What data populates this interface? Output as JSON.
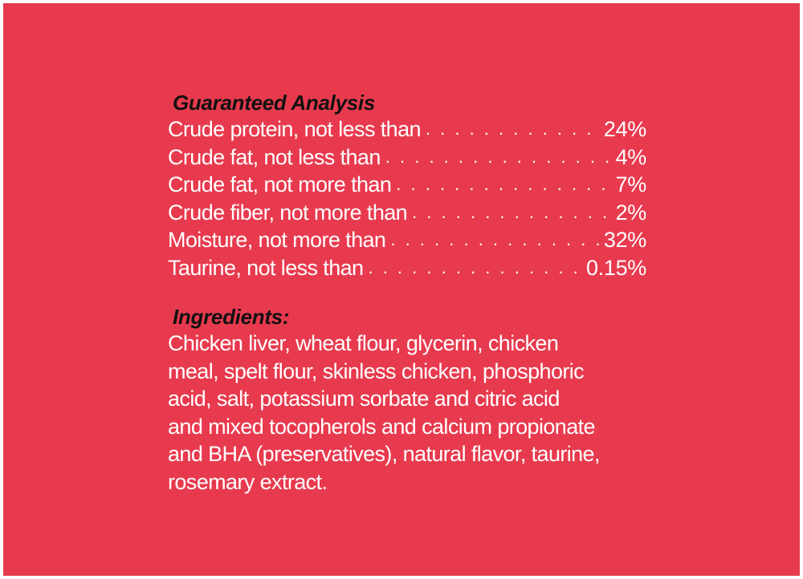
{
  "colors": {
    "background": "#e83a4e",
    "heading": "#111111",
    "text": "#ffffff"
  },
  "analysis": {
    "heading": "Guaranteed Analysis",
    "rows": [
      {
        "label": "Crude protein, not less than",
        "value": "24%"
      },
      {
        "label": "Crude fat, not less than",
        "value": "4%"
      },
      {
        "label": "Crude fat, not more than",
        "value": "7%"
      },
      {
        "label": "Crude fiber, not more than",
        "value": "2%"
      },
      {
        "label": "Moisture, not more than",
        "value": "32%"
      },
      {
        "label": "Taurine, not less than",
        "value": "0.15%"
      }
    ]
  },
  "ingredients": {
    "heading": "Ingredients:",
    "lines": [
      "Chicken liver, wheat flour, glycerin, chicken",
      "meal, spelt flour, skinless chicken, phosphoric",
      "acid, salt, potassium sorbate and citric acid",
      "and mixed tocopherols and calcium propionate",
      "and BHA (preservatives), natural flavor, taurine,",
      "rosemary extract."
    ]
  }
}
